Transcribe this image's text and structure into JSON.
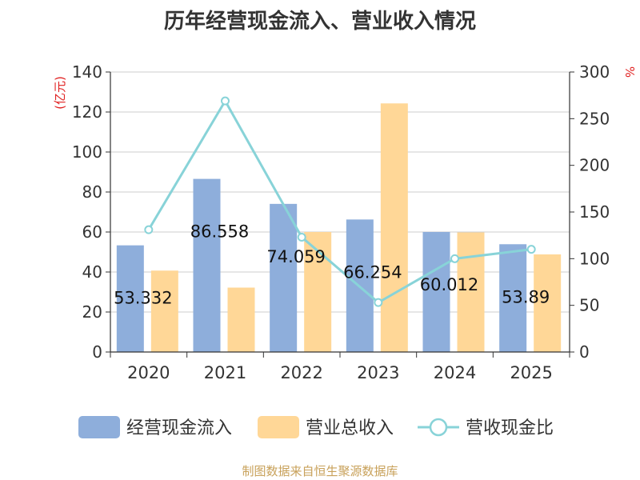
{
  "chart_data": {
    "type": "bar",
    "title": "历年经营现金流入、营业收入情况",
    "categories": [
      "2020",
      "2021",
      "2022",
      "2023",
      "2024",
      "2025"
    ],
    "y_left": {
      "unit_label": "(亿元)",
      "ylim": [
        0,
        140
      ],
      "ticks": [
        0,
        20,
        40,
        60,
        80,
        100,
        120,
        140
      ]
    },
    "y_right": {
      "unit_label": "%",
      "ylim": [
        0,
        300
      ],
      "ticks": [
        0,
        50,
        100,
        150,
        200,
        250,
        300
      ]
    },
    "grid": true,
    "legend_position": "bottom",
    "series": [
      {
        "name": "经营现金流入",
        "type": "bar",
        "axis": "left",
        "color": "#8eaedb",
        "values": [
          53.332,
          86.558,
          74.059,
          66.254,
          60.012,
          53.89
        ],
        "value_labels": [
          "53.332",
          "86.558",
          "74.059",
          "66.254",
          "60.012",
          "53.89"
        ]
      },
      {
        "name": "营业总收入",
        "type": "bar",
        "axis": "left",
        "color": "#ffd797",
        "values": [
          40.7,
          32.2,
          60.0,
          124.3,
          59.8,
          48.8
        ]
      },
      {
        "name": "营收现金比",
        "type": "line",
        "axis": "right",
        "color": "#88d3d8",
        "values": [
          131,
          269,
          123,
          53,
          100,
          110
        ]
      }
    ]
  },
  "source_text": "制图数据来自恒生聚源数据库"
}
